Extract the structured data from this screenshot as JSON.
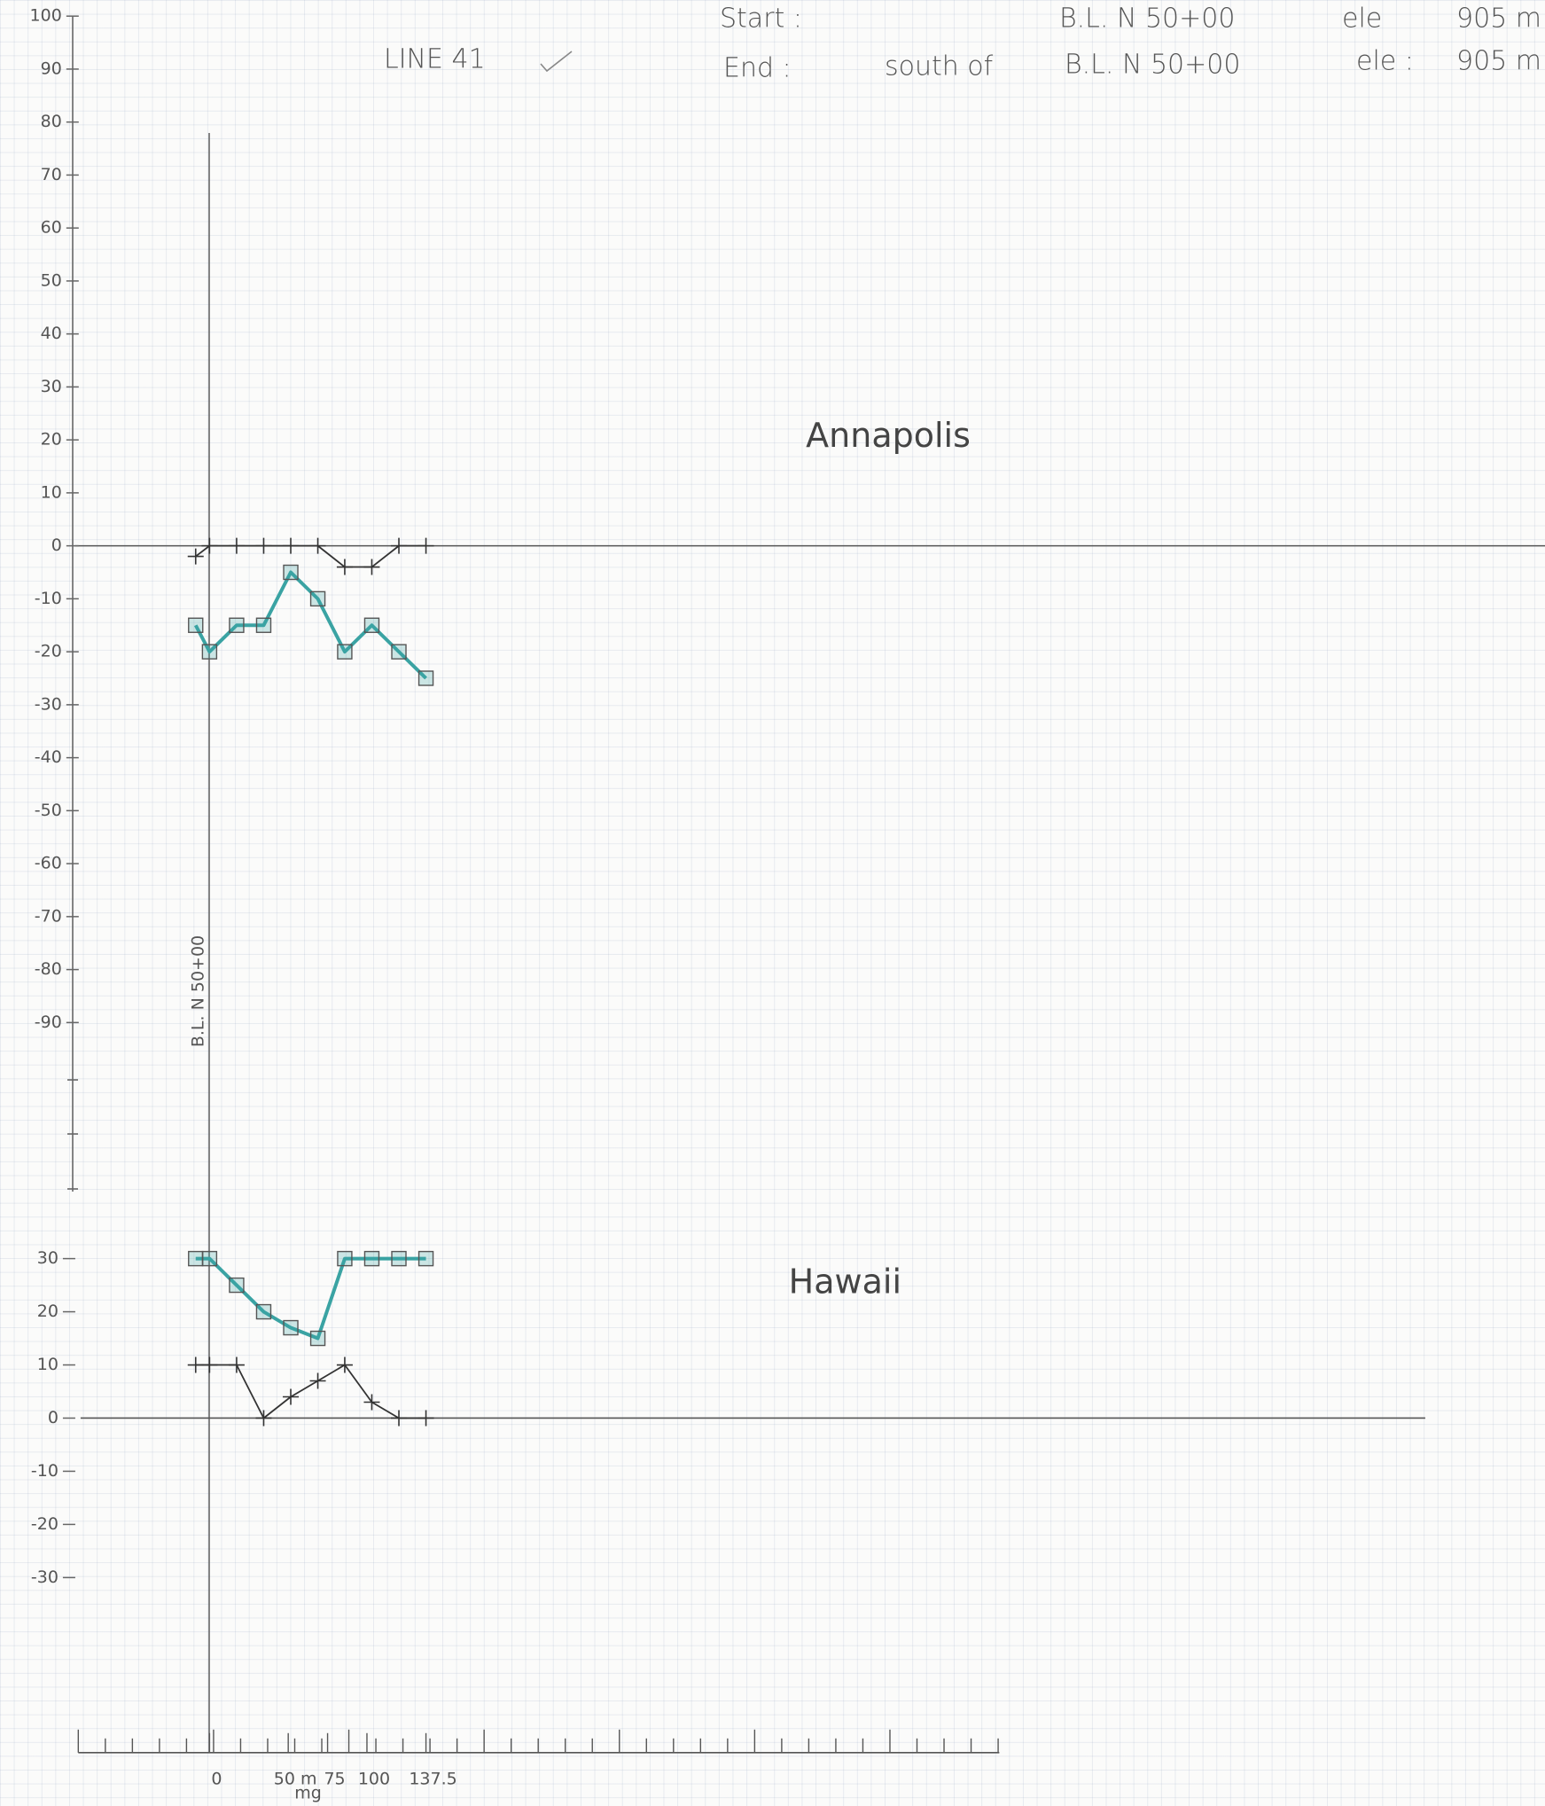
{
  "header": {
    "title": "LINE 41",
    "start_label": "Start :",
    "start_location": "B.L. N 50+00",
    "start_ele_label": "ele",
    "start_ele": "905 m",
    "end_label": "End :",
    "end_direction": "south of",
    "end_location": "B.L. N 50+00",
    "end_ele_label": "ele :",
    "end_ele": "905 m",
    "baseline_label": "B.L. N 50+00"
  },
  "chart_data": [
    {
      "type": "line",
      "title": "Annapolis",
      "x": [
        -8.8,
        0,
        17.2,
        34.4,
        51.6,
        68.8,
        85.9,
        103.1,
        120.3,
        137.5
      ],
      "series": [
        {
          "color": "#333333",
          "marker": "plus",
          "values": [
            -2,
            0,
            0,
            0,
            0,
            0,
            -4,
            -4,
            0,
            0
          ]
        },
        {
          "color": "#3aa3a3",
          "marker": "square",
          "values": [
            -15,
            -20,
            -15,
            -15,
            -5,
            -10,
            -20,
            -15,
            -20,
            -25
          ]
        }
      ],
      "xlim": [
        0,
        137.5
      ],
      "ylim": [
        -120,
        100
      ],
      "yticks": [
        100,
        90,
        80,
        70,
        60,
        50,
        40,
        30,
        20,
        10,
        0,
        -10,
        -20,
        -30,
        -40,
        -50,
        -60,
        -70,
        -80,
        -90
      ],
      "grid": false
    },
    {
      "type": "line",
      "title": "Hawaii",
      "x": [
        -8.8,
        0,
        17.2,
        34.4,
        51.6,
        68.8,
        85.9,
        103.1,
        120.3,
        137.5
      ],
      "series": [
        {
          "color": "#3aa3a3",
          "marker": "square",
          "values": [
            30,
            30,
            25,
            20,
            17,
            15,
            30,
            30,
            30,
            30
          ]
        },
        {
          "color": "#333333",
          "marker": "plus",
          "values": [
            10,
            10,
            10,
            0,
            4,
            7,
            10,
            3,
            0,
            0
          ]
        }
      ],
      "xlim": [
        0,
        137.5
      ],
      "ylim": [
        -30,
        30
      ],
      "yticks": [
        30,
        20,
        10,
        0,
        -10,
        -20,
        -30
      ],
      "xticks": [
        0,
        {
          "value": 50,
          "label": "50 m"
        },
        75,
        100,
        137.5
      ],
      "x_label": "mg",
      "grid": false
    }
  ]
}
